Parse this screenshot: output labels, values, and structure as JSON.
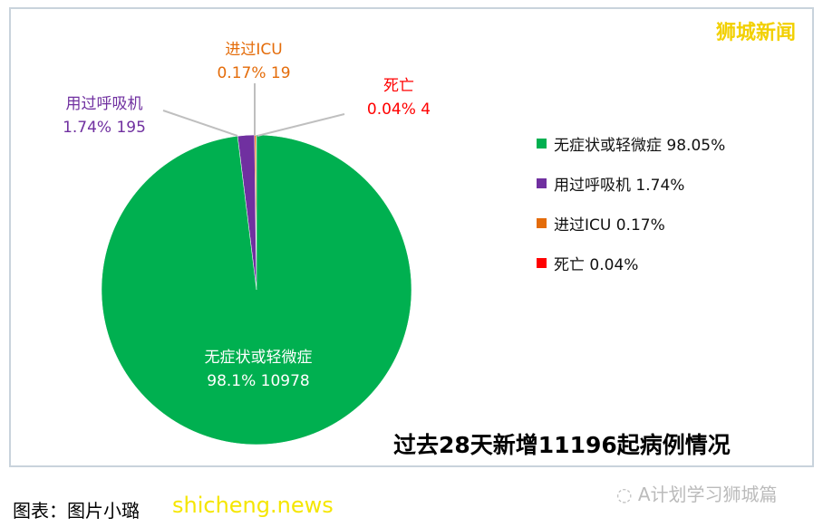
{
  "brand": "狮城新闻",
  "chart_data": {
    "type": "pie",
    "title": "过去28天新增11196起病例情况",
    "slices": [
      {
        "label": "无症状或轻微症",
        "percent": 98.05,
        "count": 10978,
        "data_label_percent": "98.1%",
        "color": "#00b050",
        "legend": "无症状或轻微症 98.05%"
      },
      {
        "label": "用过呼吸机",
        "percent": 1.74,
        "count": 195,
        "data_label_percent": "1.74%",
        "color": "#7030a0",
        "legend": "用过呼吸机 1.74%"
      },
      {
        "label": "进过ICU",
        "percent": 0.17,
        "count": 19,
        "data_label_percent": "0.17%",
        "color": "#e46c0a",
        "legend": "进过ICU 0.17%"
      },
      {
        "label": "死亡",
        "percent": 0.04,
        "count": 4,
        "data_label_percent": "0.04%",
        "color": "#ff0000",
        "legend": "死亡 0.04%"
      }
    ],
    "legend_position": "right"
  },
  "footer": {
    "caption": "图表：图片小璐",
    "watermark": "shicheng.news",
    "wechat": "A计划学习狮城篇"
  }
}
